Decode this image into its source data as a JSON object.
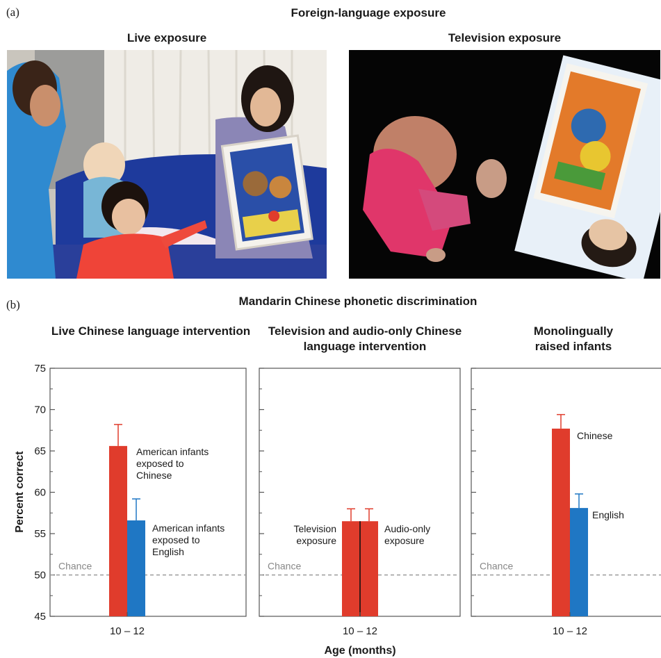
{
  "panel_a": {
    "letter": "(a)",
    "title": "Foreign-language exposure",
    "photos": [
      {
        "label": "Live exposure"
      },
      {
        "label": "Television exposure"
      }
    ]
  },
  "panel_b": {
    "letter": "(b)",
    "title": "Mandarin Chinese phonetic discrimination"
  },
  "colors": {
    "chinese": "#e03c2c",
    "english": "#1f77c4",
    "chance_line": "#9a9a9a"
  },
  "chart_data": {
    "type": "bar",
    "title": "Mandarin Chinese phonetic discrimination",
    "xlabel": "Age (months)",
    "ylabel": "Percent correct",
    "ylim": [
      45,
      75
    ],
    "yticks": [
      45,
      50,
      55,
      60,
      65,
      70,
      75
    ],
    "chance": {
      "value": 50,
      "label": "Chance"
    },
    "grid": false,
    "subplots": [
      {
        "title": "Live Chinese language intervention",
        "category": "10 – 12",
        "bars": [
          {
            "label": "American infants exposed to Chinese",
            "value": 65.6,
            "error": 2.6,
            "color": "#e03c2c"
          },
          {
            "label": "American infants exposed to English",
            "value": 56.6,
            "error": 2.6,
            "color": "#1f77c4"
          }
        ]
      },
      {
        "title": "Television and audio-only Chinese language intervention",
        "category": "10 – 12",
        "bars": [
          {
            "label": "Television exposure",
            "value": 56.5,
            "error": 1.5,
            "color": "#e03c2c"
          },
          {
            "label": "Audio-only exposure",
            "value": 56.5,
            "error": 1.5,
            "color": "#e03c2c"
          }
        ]
      },
      {
        "title": "Monolingually raised infants",
        "category": "10 – 12",
        "bars": [
          {
            "label": "Chinese",
            "value": 67.7,
            "error": 1.7,
            "color": "#e03c2c"
          },
          {
            "label": "English",
            "value": 58.1,
            "error": 1.7,
            "color": "#1f77c4"
          }
        ]
      }
    ]
  }
}
